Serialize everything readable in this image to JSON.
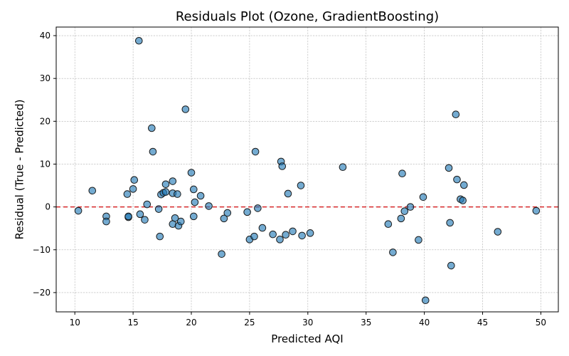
{
  "chart_data": {
    "type": "scatter",
    "title": "Residuals Plot (Ozone, GradientBoosting)",
    "xlabel": "Predicted AQI",
    "ylabel": "Residual (True - Predicted)",
    "xlim": [
      8.4,
      51.5
    ],
    "ylim": [
      -24.5,
      42.0
    ],
    "xticks": [
      10,
      15,
      20,
      25,
      30,
      35,
      40,
      45,
      50
    ],
    "yticks": [
      -20,
      -10,
      0,
      10,
      20,
      30,
      40
    ],
    "grid": true,
    "reference_line": {
      "y": 0,
      "color": "#d62728",
      "style": "dashed"
    },
    "marker_color": "#1f77b4",
    "points": [
      [
        10.3,
        -0.9
      ],
      [
        11.5,
        3.8
      ],
      [
        12.7,
        -2.2
      ],
      [
        12.7,
        -3.4
      ],
      [
        14.5,
        3.0
      ],
      [
        14.6,
        -2.4
      ],
      [
        14.6,
        -2.2
      ],
      [
        15.0,
        4.2
      ],
      [
        15.1,
        6.3
      ],
      [
        15.5,
        38.8
      ],
      [
        15.6,
        -1.7
      ],
      [
        16.0,
        -3.0
      ],
      [
        16.2,
        0.6
      ],
      [
        16.6,
        18.4
      ],
      [
        16.7,
        12.9
      ],
      [
        17.2,
        -0.5
      ],
      [
        17.3,
        -6.9
      ],
      [
        17.4,
        2.9
      ],
      [
        17.6,
        3.3
      ],
      [
        17.8,
        3.5
      ],
      [
        17.8,
        5.3
      ],
      [
        18.4,
        6.0
      ],
      [
        18.4,
        3.2
      ],
      [
        18.4,
        -4.0
      ],
      [
        18.6,
        -2.6
      ],
      [
        18.8,
        3.0
      ],
      [
        18.9,
        -4.4
      ],
      [
        19.1,
        -3.4
      ],
      [
        19.5,
        22.8
      ],
      [
        20.0,
        8.0
      ],
      [
        20.2,
        4.1
      ],
      [
        20.2,
        -2.2
      ],
      [
        20.3,
        1.1
      ],
      [
        20.8,
        2.6
      ],
      [
        21.5,
        0.2
      ],
      [
        22.6,
        -11.0
      ],
      [
        22.8,
        -2.7
      ],
      [
        23.1,
        -1.4
      ],
      [
        24.8,
        -1.2
      ],
      [
        25.0,
        -7.6
      ],
      [
        25.4,
        -6.9
      ],
      [
        25.5,
        12.9
      ],
      [
        25.7,
        -0.3
      ],
      [
        26.1,
        -4.9
      ],
      [
        27.0,
        -6.4
      ],
      [
        27.6,
        -7.6
      ],
      [
        27.7,
        10.6
      ],
      [
        27.8,
        9.5
      ],
      [
        28.1,
        -6.5
      ],
      [
        28.3,
        3.1
      ],
      [
        28.7,
        -5.7
      ],
      [
        29.4,
        5.0
      ],
      [
        29.5,
        -6.7
      ],
      [
        30.2,
        -6.1
      ],
      [
        33.0,
        9.3
      ],
      [
        36.9,
        -4.0
      ],
      [
        37.3,
        -10.6
      ],
      [
        38.0,
        -2.7
      ],
      [
        38.1,
        7.8
      ],
      [
        38.3,
        -1.0
      ],
      [
        38.8,
        0.0
      ],
      [
        39.5,
        -7.7
      ],
      [
        39.9,
        2.3
      ],
      [
        40.1,
        -21.8
      ],
      [
        42.1,
        9.1
      ],
      [
        42.2,
        -3.7
      ],
      [
        42.3,
        -13.7
      ],
      [
        42.7,
        21.6
      ],
      [
        42.8,
        6.4
      ],
      [
        43.1,
        1.8
      ],
      [
        43.3,
        1.5
      ],
      [
        43.4,
        5.1
      ],
      [
        46.3,
        -5.8
      ],
      [
        49.6,
        -0.9
      ]
    ]
  }
}
